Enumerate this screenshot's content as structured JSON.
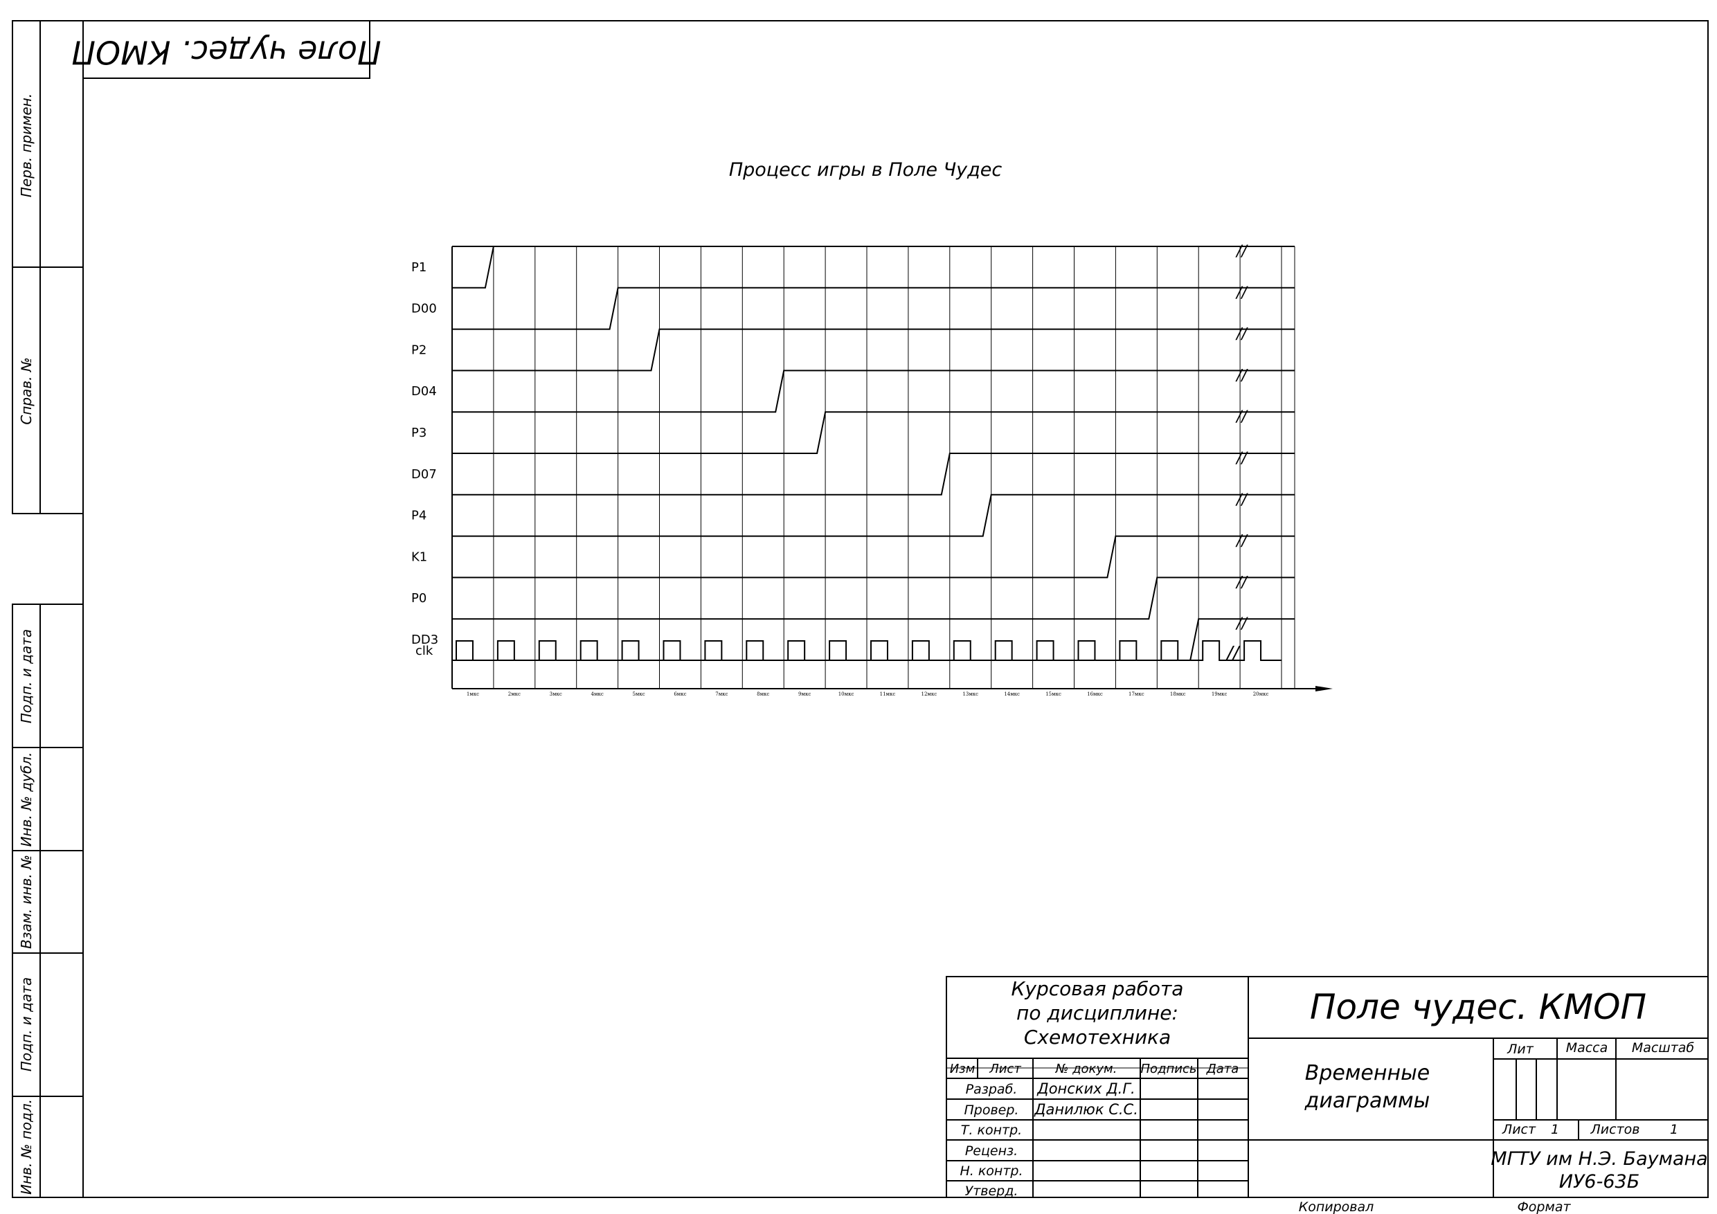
{
  "stamp_top": "Поле чудес. КМОП",
  "side_labels": [
    "Перв. примен.",
    "Справ. №",
    "Подп. и дата",
    "Инв. № дубл.",
    "Взам. инв. №",
    "Подп. и дата",
    "Инв. № подл."
  ],
  "diagram": {
    "title": "Процесс игры в Поле Чудес",
    "signals": [
      {
        "name": "P1",
        "rise_step": 1
      },
      {
        "name": "D00",
        "rise_step": 4
      },
      {
        "name": "P2",
        "rise_step": 5
      },
      {
        "name": "D04",
        "rise_step": 8
      },
      {
        "name": "P3",
        "rise_step": 9
      },
      {
        "name": "D07",
        "rise_step": 12
      },
      {
        "name": "P4",
        "rise_step": 13
      },
      {
        "name": "K1",
        "rise_step": 16
      },
      {
        "name": "P0",
        "rise_step": 17
      },
      {
        "name": "DD3",
        "rise_step": 18
      }
    ],
    "clock_name": "clk",
    "steps": 20,
    "break_marks": "//",
    "time_ticks": [
      "1мкс",
      "2мкс",
      "3мкс",
      "4мкс",
      "5мкс",
      "6мкс",
      "7мкс",
      "8мкс",
      "9мкс",
      "10мкс",
      "11мкс",
      "12мкс",
      "13мкс",
      "14мкс",
      "15мкс",
      "16мкс",
      "17мкс",
      "18мкс",
      "19мкс",
      "20мкс"
    ]
  },
  "title_block": {
    "course_line1": "Курсовая работа",
    "course_line2": "по дисциплине:",
    "course_line3": "Схемотехника",
    "doc_title": "Поле чудес. КМОП",
    "doc_name_line1": "Временные",
    "doc_name_line2": "диаграммы",
    "hdr_izm": "Изм",
    "hdr_list": "Лист",
    "hdr_docnum": "№ докум.",
    "hdr_sign": "Подпись",
    "hdr_date": "Дата",
    "role_razrab": "Разраб.",
    "role_prover": "Провер.",
    "role_tkontr": "Т. контр.",
    "role_recenz": "Реценз.",
    "role_nkontr": "Н. контр.",
    "role_utverd": "Утверд.",
    "name_razrab": "Донских Д.Г.",
    "name_prover": "Данилюк С.С.",
    "lit": "Лит",
    "massa": "Масса",
    "masshtab": "Масштаб",
    "list_label": "Лист",
    "list_value": "1",
    "listov_label": "Листов",
    "listov_value": "1",
    "org_line1": "МГТУ им Н.Э. Баумана",
    "org_line2": "ИУ6-63Б",
    "kopiroval": "Копировал",
    "format": "Формат"
  }
}
